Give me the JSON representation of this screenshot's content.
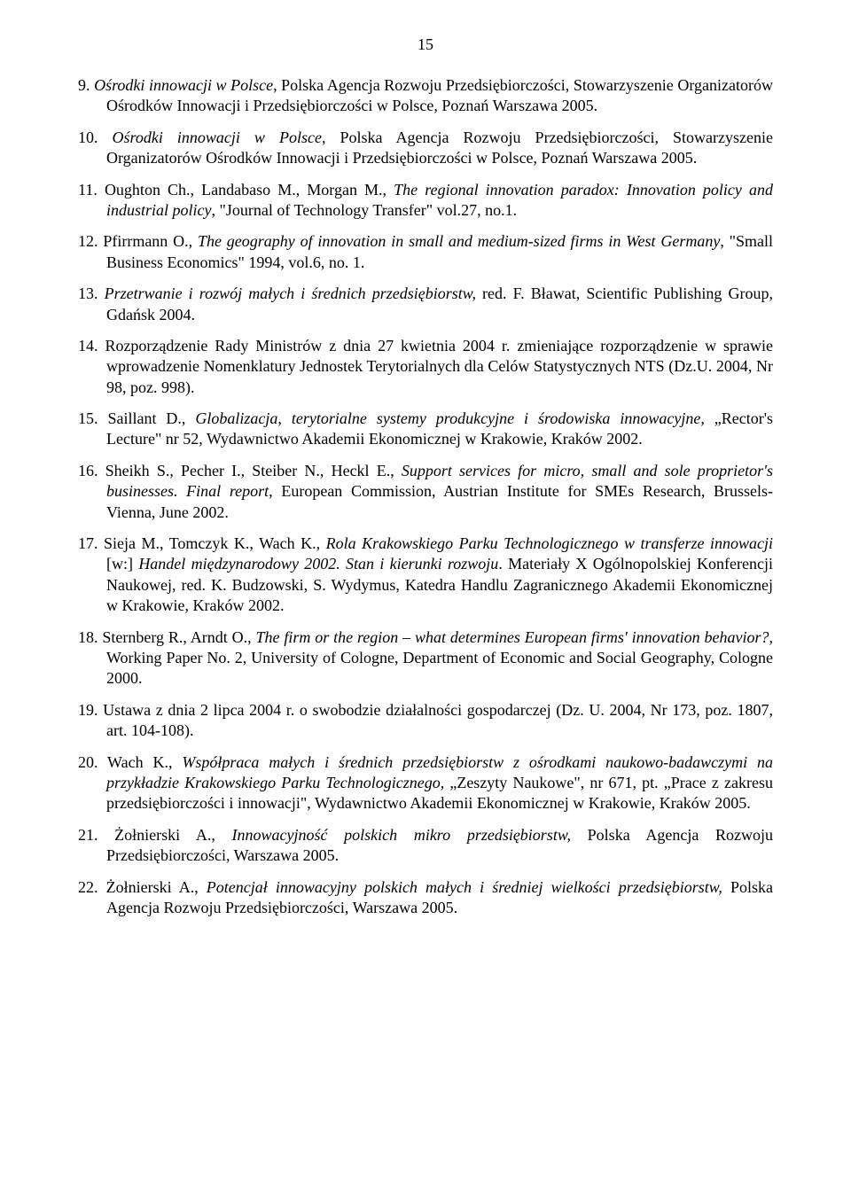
{
  "page_number": "15",
  "text_color": "#000000",
  "bg_color": "#ffffff",
  "font_family": "Times New Roman",
  "references": [
    {
      "num": "9.",
      "parts": [
        {
          "t": " ",
          "i": false
        },
        {
          "t": "Ośrodki innowacji w Polsce",
          "i": true
        },
        {
          "t": ", Polska Agencja Rozwoju Przedsiębiorczości, Stowarzyszenie Organizatorów Ośrodków Innowacji i Przedsiębiorczości w Polsce, Poznań Warszawa 2005.",
          "i": false
        }
      ]
    },
    {
      "num": "10.",
      "parts": [
        {
          "t": " ",
          "i": false
        },
        {
          "t": "Ośrodki innowacji w Polsce,",
          "i": true
        },
        {
          "t": " Polska Agencja Rozwoju Przedsiębiorczości, Stowarzyszenie Organizatorów Ośrodków Innowacji i Przedsiębiorczości w Polsce, Poznań Warszawa 2005.",
          "i": false
        }
      ]
    },
    {
      "num": "11.",
      "parts": [
        {
          "t": " Oughton Ch., Landabaso M., Morgan M., ",
          "i": false
        },
        {
          "t": "The regional innovation paradox: Innovation policy and industrial policy",
          "i": true
        },
        {
          "t": ", \"Journal of Technology Transfer\" vol.27, no.1.",
          "i": false
        }
      ]
    },
    {
      "num": "12.",
      "parts": [
        {
          "t": " Pfirrmann O., ",
          "i": false
        },
        {
          "t": "The geography of innovation in small and medium-sized firms in West Germany",
          "i": true
        },
        {
          "t": ", \"Small Business Economics\" 1994, vol.6, no. 1.",
          "i": false
        }
      ]
    },
    {
      "num": "13.",
      "parts": [
        {
          "t": " ",
          "i": false
        },
        {
          "t": "Przetrwanie i rozwój małych i średnich przedsiębiorstw,",
          "i": true
        },
        {
          "t": " red. F. Bławat, Scientific Publishing Group, Gdańsk 2004.",
          "i": false
        }
      ]
    },
    {
      "num": "14.",
      "parts": [
        {
          "t": " Rozporządzenie Rady Ministrów z dnia 27 kwietnia 2004 r. zmieniające rozporządzenie w sprawie wprowadzenie Nomenklatury Jednostek Terytorialnych dla Celów Statystycznych NTS (Dz.U. 2004, Nr 98, poz. 998).",
          "i": false
        }
      ]
    },
    {
      "num": "15.",
      "parts": [
        {
          "t": " Saillant D., ",
          "i": false
        },
        {
          "t": "Globalizacja",
          "i": true
        },
        {
          "t": ", ",
          "i": false
        },
        {
          "t": "terytorialne systemy produkcyjne i środowiska innowacyjne,",
          "i": true
        },
        {
          "t": " „Rector's Lecture\" nr 52, Wydawnictwo Akademii Ekonomicznej w Krakowie, Kraków 2002.",
          "i": false
        }
      ]
    },
    {
      "num": "16.",
      "parts": [
        {
          "t": " Sheikh S., Pecher I., Steiber N., Heckl E., ",
          "i": false
        },
        {
          "t": "Support services for micro, small and sole proprietor's businesses. Final report,",
          "i": true
        },
        {
          "t": " European Commission, Austrian Institute for SMEs Research, Brussels-Vienna, June 2002.",
          "i": false
        }
      ]
    },
    {
      "num": "17.",
      "parts": [
        {
          "t": " Sieja M., Tomczyk K., Wach K., ",
          "i": false
        },
        {
          "t": "Rola Krakowskiego Parku Technologicznego w transferze innowacji",
          "i": true
        },
        {
          "t": " [w:] ",
          "i": false
        },
        {
          "t": "Handel międzynarodowy 2002. Stan i kierunki rozwoju",
          "i": true
        },
        {
          "t": ". Materiały X Ogólnopolskiej Konferencji Naukowej, red. K. Budzowski, S. Wydymus, Katedra Handlu Zagranicznego Akademii Ekonomicznej w Krakowie, Kraków 2002.",
          "i": false
        }
      ]
    },
    {
      "num": "18.",
      "parts": [
        {
          "t": " Sternberg R., Arndt O., ",
          "i": false
        },
        {
          "t": "The firm or the region – what determines European firms' innovation behavior?",
          "i": true
        },
        {
          "t": ", Working Paper No. 2, University of Cologne, Department of Economic and Social Geography, Cologne 2000.",
          "i": false
        }
      ]
    },
    {
      "num": "19.",
      "parts": [
        {
          "t": " Ustawa z dnia 2 lipca 2004 r. o swobodzie działalności gospodarczej (Dz. U. 2004, Nr 173, poz. 1807, art. 104-108).",
          "i": false
        }
      ]
    },
    {
      "num": "20.",
      "parts": [
        {
          "t": " Wach K., ",
          "i": false
        },
        {
          "t": "Współpraca małych i średnich przedsiębiorstw z ośrodkami naukowo-badawczymi na przykładzie Krakowskiego Parku Technologicznego,",
          "i": true
        },
        {
          "t": " „Zeszyty Naukowe\", nr 671, pt. „Prace z zakresu przedsiębiorczości i innowacji\", Wydawnictwo Akademii Ekonomicznej w Krakowie, Kraków 2005.",
          "i": false
        }
      ]
    },
    {
      "num": "21.",
      "parts": [
        {
          "t": " Żołnierski A., ",
          "i": false
        },
        {
          "t": "Innowacyjność polskich mikro przedsiębiorstw,",
          "i": true
        },
        {
          "t": " Polska Agencja Rozwoju Przedsiębiorczości, Warszawa 2005.",
          "i": false
        }
      ]
    },
    {
      "num": "22.",
      "parts": [
        {
          "t": " Żołnierski A., ",
          "i": false
        },
        {
          "t": "Potencjał innowacyjny polskich małych i średniej wielkości przedsiębiorstw,",
          "i": true
        },
        {
          "t": " Polska Agencja Rozwoju Przedsiębiorczości, Warszawa 2005.",
          "i": false
        }
      ]
    }
  ]
}
